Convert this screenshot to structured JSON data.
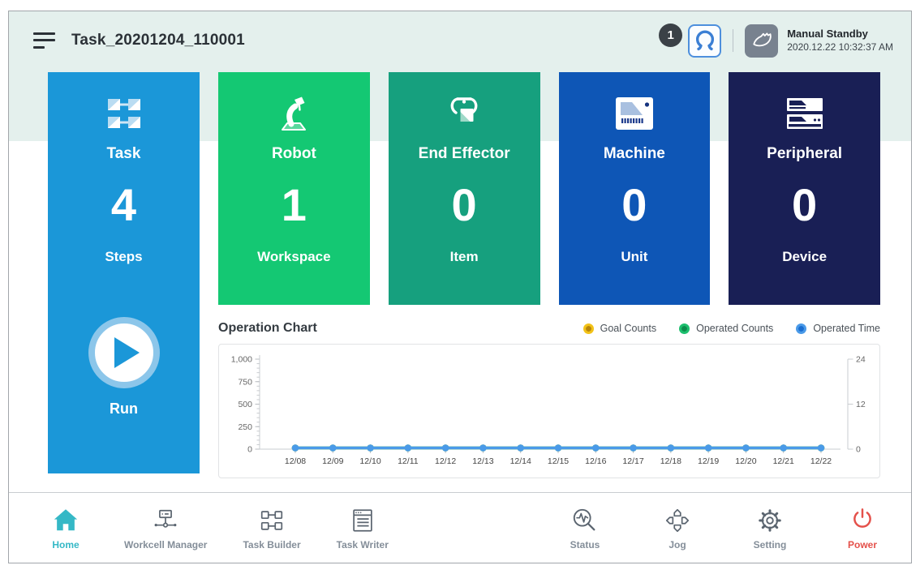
{
  "header": {
    "title": "Task_20201204_110001",
    "badge_count": "1",
    "status_title": "Manual Standby",
    "status_time": "2020.12.22 10:32:37 AM"
  },
  "colors": {
    "header_bg": "#e4f0ed",
    "nav_active": "#35b8c6",
    "nav_inactive": "#848e99",
    "power_red": "#e4504a"
  },
  "cards": [
    {
      "label": "Task",
      "value": "4",
      "unit": "Steps",
      "color": "#1b97d8",
      "run_label": "Run"
    },
    {
      "label": "Robot",
      "value": "1",
      "unit": "Workspace",
      "color": "#14c873"
    },
    {
      "label": "End Effector",
      "value": "0",
      "unit": "Item",
      "color": "#16a07e"
    },
    {
      "label": "Machine",
      "value": "0",
      "unit": "Unit",
      "color": "#0e56b6"
    },
    {
      "label": "Peripheral",
      "value": "0",
      "unit": "Device",
      "color": "#191f55"
    }
  ],
  "chart_data": {
    "type": "line",
    "title": "Operation Chart",
    "categories": [
      "12/08",
      "12/09",
      "12/10",
      "12/11",
      "12/12",
      "12/13",
      "12/14",
      "12/15",
      "12/16",
      "12/17",
      "12/18",
      "12/19",
      "12/20",
      "12/21",
      "12/22"
    ],
    "series": [
      {
        "name": "Goal Counts",
        "color": "#f2c218",
        "center_color": "#b8860b",
        "axis": "left",
        "values": [
          0,
          0,
          0,
          0,
          0,
          0,
          0,
          0,
          0,
          0,
          0,
          0,
          0,
          0,
          0
        ]
      },
      {
        "name": "Operated Counts",
        "color": "#1dbf6e",
        "center_color": "#0c8c4c",
        "axis": "left",
        "values": [
          0,
          0,
          0,
          0,
          0,
          0,
          0,
          0,
          0,
          0,
          0,
          0,
          0,
          0,
          0
        ]
      },
      {
        "name": "Operated Time",
        "color": "#4a9ae8",
        "center_color": "#1a6dd0",
        "axis": "right",
        "values": [
          0,
          0,
          0,
          0,
          0,
          0,
          0,
          0,
          0,
          0,
          0,
          0,
          0,
          0,
          0
        ]
      }
    ],
    "left_axis": {
      "ticks": [
        0,
        250,
        500,
        750,
        1000
      ],
      "labels": [
        "0",
        "250",
        "500",
        "750",
        "1,000"
      ],
      "range": [
        0,
        1000
      ],
      "minor_step": 50
    },
    "right_axis": {
      "ticks": [
        0,
        12,
        24
      ],
      "labels": [
        "0",
        "12",
        "24"
      ],
      "range": [
        0,
        24
      ]
    },
    "grid": false,
    "legend_position": "top-right"
  },
  "nav": {
    "left": [
      {
        "label": "Home",
        "icon": "home-icon",
        "active": true
      },
      {
        "label": "Workcell Manager",
        "icon": "workcell-manager-icon"
      },
      {
        "label": "Task Builder",
        "icon": "task-builder-icon"
      },
      {
        "label": "Task Writer",
        "icon": "task-writer-icon"
      }
    ],
    "right": [
      {
        "label": "Status",
        "icon": "status-icon"
      },
      {
        "label": "Jog",
        "icon": "jog-icon"
      },
      {
        "label": "Setting",
        "icon": "setting-icon"
      },
      {
        "label": "Power",
        "icon": "power-icon",
        "danger": true
      }
    ]
  }
}
